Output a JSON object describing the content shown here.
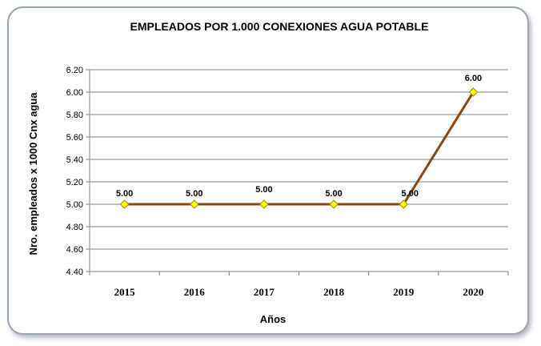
{
  "chart_data": {
    "type": "line",
    "title": "EMPLEADOS POR 1.000 CONEXIONES AGUA POTABLE",
    "xlabel": "Años",
    "ylabel": "Nro. empleados x 1000 Cnx agua",
    "categories": [
      "2015",
      "2016",
      "2017",
      "2018",
      "2019",
      "2020"
    ],
    "series": [
      {
        "values": [
          5.0,
          5.0,
          5.0,
          5.0,
          5.0,
          6.0
        ]
      }
    ],
    "data_labels": [
      "5.00",
      "5.00",
      "5.00",
      "5.00",
      "5.00",
      "6.00"
    ],
    "ylim": [
      4.4,
      6.2
    ],
    "yticks": [
      "4.40",
      "4.60",
      "4.80",
      "5.00",
      "5.20",
      "5.40",
      "5.60",
      "5.80",
      "6.00",
      "6.20"
    ],
    "grid": true,
    "colors": {
      "line": "#8b4513",
      "marker_fill": "#ffff00",
      "marker_stroke": "#a08a00",
      "grid": "#7f7f7f"
    }
  }
}
